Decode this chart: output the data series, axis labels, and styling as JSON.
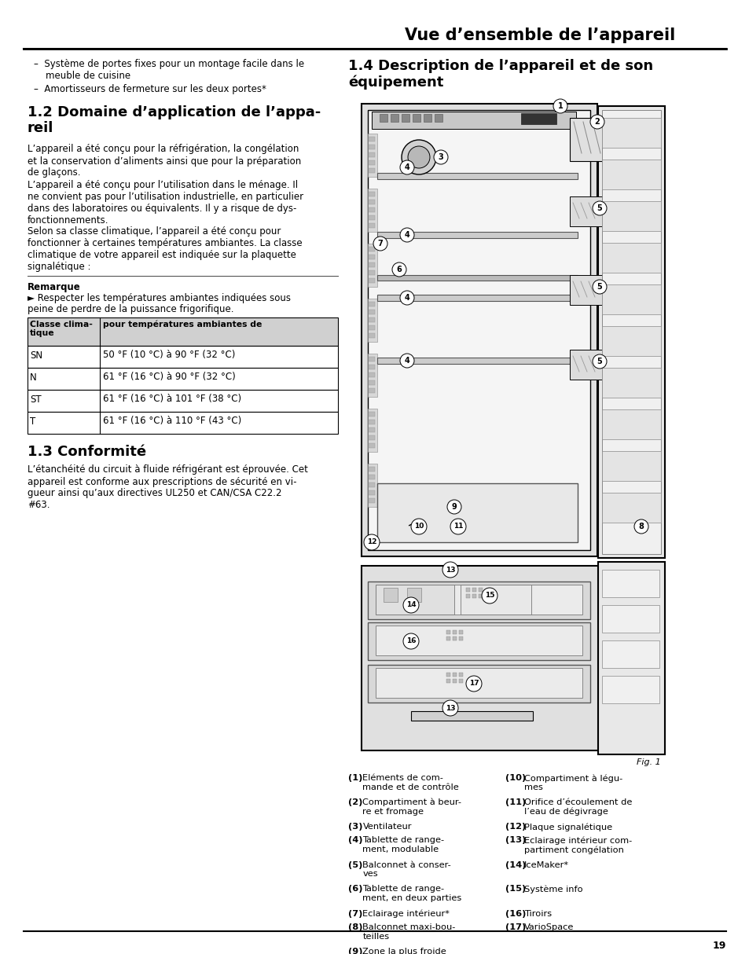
{
  "page_title": "Vue d’ensemble de l’appareil",
  "bullet_items": [
    "–  Système de portes fixes pour un montage facile dans le\n    meuble de cuisine",
    "–  Amortisseurs de fermeture sur les deux portes*"
  ],
  "section1_title": "1.2 Domaine d’application de l’appa-\nreil",
  "section1_paragraphs": [
    "L’appareil a été conçu pour la réfrigération, la congélation\net la conservation d’aliments ainsi que pour la préparation\nde glaçons.",
    "L’appareil a été conçu pour l’utilisation dans le ménage. Il\nne convient pas pour l’utilisation industrielle, en particulier\ndans des laboratoires ou équivalents. Il y a risque de dys-\nfonctionnements.",
    "Selon sa classe climatique, l’appareil a été conçu pour\nfonctionner à certaines températures ambiantes. La classe\nclimatique de votre appareil est indiquée sur la plaquette\nsignalétique :"
  ],
  "remarque_title": "Remarque",
  "remarque_text": "► Respecter les températures ambiantes indiquées sous\npeine de perdre de la puissance frigorifique.",
  "table_headers": [
    "Classe clima-\ntique",
    "pour températures ambiantes de"
  ],
  "table_rows": [
    [
      "SN",
      "50 °F (10 °C) à 90 °F (32 °C)"
    ],
    [
      "N",
      "61 °F (16 °C) à 90 °F (32 °C)"
    ],
    [
      "ST",
      "61 °F (16 °C) à 101 °F (38 °C)"
    ],
    [
      "T",
      "61 °F (16 °C) à 110 °F (43 °C)"
    ]
  ],
  "section2_title": "1.3 Conformité",
  "section2_paragraph": "L’étanchéité du circuit à fluide réfrigérant est éprouvée. Cet\nappareil est conforme aux prescriptions de sécurité en vi-\ngueur ainsi qu’aux directives UL250 et CAN/CSA C22.2\n#63.",
  "section3_title": "1.4 Description de l’appareil et de son\néquipement",
  "fig_label": "Fig. 1",
  "caption_items": [
    {
      "num": "1",
      "text": "Eléments de com-\nmande et de contrôle",
      "col": 0
    },
    {
      "num": "2",
      "text": "Compartiment à beur-\nre et fromage",
      "col": 0
    },
    {
      "num": "3",
      "text": "Ventilateur",
      "col": 0
    },
    {
      "num": "4",
      "text": "Tablette de range-\nment, modulable",
      "col": 0
    },
    {
      "num": "5",
      "text": "Balconnet à conser-\nves",
      "col": 0
    },
    {
      "num": "6",
      "text": "Tablette de range-\nment, en deux parties",
      "col": 0
    },
    {
      "num": "7",
      "text": "Eclairage intérieur*",
      "col": 0
    },
    {
      "num": "8",
      "text": "Balconnet maxi-bou-\nteilles",
      "col": 0
    },
    {
      "num": "9",
      "text": "Zone la plus froide",
      "col": 0
    },
    {
      "num": "10",
      "text": "Compartiment à légu-\nmes",
      "col": 1
    },
    {
      "num": "11",
      "text": "Orifice d’écoulement de\nl’eau de dégivrage",
      "col": 1
    },
    {
      "num": "12",
      "text": "Plaque signalétique",
      "col": 1
    },
    {
      "num": "13",
      "text": "Eclairage intérieur com-\npartiment congélation",
      "col": 1
    },
    {
      "num": "14",
      "text": "IceMaker*",
      "col": 1
    },
    {
      "num": "15",
      "text": "Système info",
      "col": 1
    },
    {
      "num": "16",
      "text": "Tiroirs",
      "col": 1
    },
    {
      "num": "17",
      "text": "VarioSpace",
      "col": 1
    }
  ],
  "page_number": "19",
  "bg_color": "#ffffff",
  "text_color": "#000000",
  "table_header_bg": "#d0d0d0",
  "fridge_color": "#e8e8e8",
  "fridge_dark": "#555555",
  "fridge_mid": "#999999"
}
